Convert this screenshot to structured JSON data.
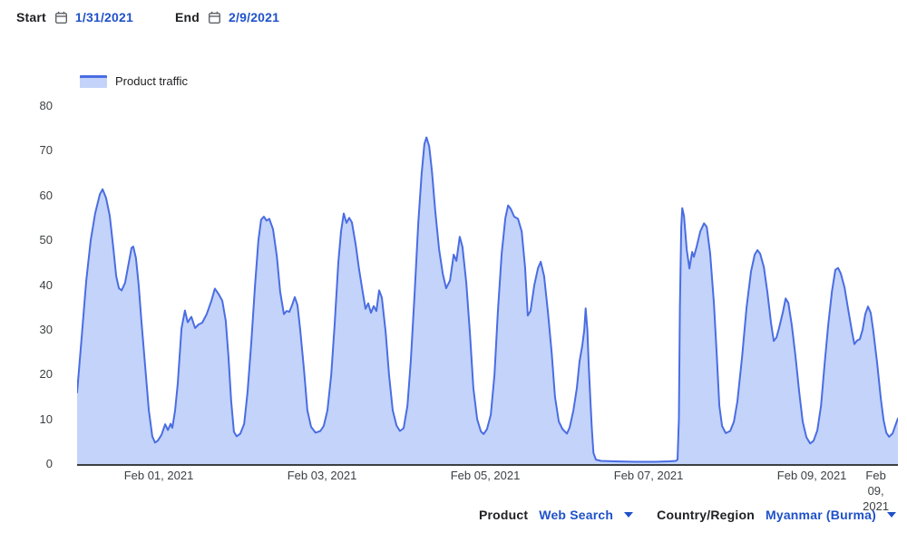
{
  "header": {
    "start_label": "Start",
    "start_date": "1/31/2021",
    "end_label": "End",
    "end_date": "2/9/2021"
  },
  "legend": {
    "label": "Product traffic"
  },
  "footer": {
    "product_label": "Product",
    "product_value": "Web Search",
    "region_label": "Country/Region",
    "region_value": "Myanmar (Burma)"
  },
  "colors": {
    "line": "#4a6de2",
    "fill": "#c3d3f9",
    "link_blue": "#1f51c9",
    "axis": "#3c4043",
    "tick_text": "#3c4043",
    "label_text": "#202124"
  },
  "chart_data": {
    "type": "area",
    "title": "Product traffic",
    "xlabel": "",
    "ylabel": "",
    "x_unit": "hours since Jan 31, 2021 00:00",
    "x_range": [
      0,
      241.3
    ],
    "ylim": [
      0,
      80
    ],
    "grid": false,
    "legend_position": "top-left",
    "yticks": [
      0,
      10,
      20,
      30,
      40,
      50,
      60,
      70,
      80
    ],
    "xticks": [
      {
        "label": "Feb 01, 2021",
        "hour": 24
      },
      {
        "label": "Feb 03, 2021",
        "hour": 72
      },
      {
        "label": "Feb 05, 2021",
        "hour": 120
      },
      {
        "label": "Feb 07, 2021",
        "hour": 168
      },
      {
        "label": "Feb 09, 2021",
        "hour": 216
      },
      {
        "label": "Feb 09,\n2021",
        "hour": 234.8
      }
    ],
    "series": [
      {
        "name": "Product traffic",
        "points": [
          [
            0,
            16
          ],
          [
            1.3,
            28
          ],
          [
            2.7,
            41
          ],
          [
            4,
            50
          ],
          [
            5.3,
            56
          ],
          [
            6.7,
            60.3
          ],
          [
            7.5,
            61.4
          ],
          [
            8.5,
            59.5
          ],
          [
            9.6,
            55.5
          ],
          [
            10.7,
            48
          ],
          [
            11.5,
            42
          ],
          [
            12.3,
            39.3
          ],
          [
            13.1,
            38.8
          ],
          [
            14.1,
            40.5
          ],
          [
            15.2,
            45
          ],
          [
            16,
            48.3
          ],
          [
            16.5,
            48.6
          ],
          [
            17.3,
            46
          ],
          [
            18.1,
            40
          ],
          [
            18.9,
            32
          ],
          [
            20,
            22
          ],
          [
            21.1,
            12
          ],
          [
            22.1,
            6.2
          ],
          [
            22.9,
            4.8
          ],
          [
            23.7,
            5.2
          ],
          [
            24.8,
            6.5
          ],
          [
            25.9,
            8.9
          ],
          [
            26.7,
            7.6
          ],
          [
            27.5,
            9
          ],
          [
            28,
            8.1
          ],
          [
            28.8,
            11.9
          ],
          [
            29.6,
            18
          ],
          [
            30.7,
            30.3
          ],
          [
            31.7,
            34.3
          ],
          [
            32.5,
            31.7
          ],
          [
            33.6,
            32.9
          ],
          [
            34.7,
            30.4
          ],
          [
            35.7,
            31.2
          ],
          [
            36.8,
            31.6
          ],
          [
            38.1,
            33.5
          ],
          [
            39.5,
            36.5
          ],
          [
            40.5,
            39.2
          ],
          [
            41.6,
            38
          ],
          [
            42.7,
            36.5
          ],
          [
            43.7,
            32
          ],
          [
            44.5,
            24
          ],
          [
            45.3,
            14
          ],
          [
            46.1,
            7.2
          ],
          [
            46.9,
            6.2
          ],
          [
            48,
            6.8
          ],
          [
            49.1,
            9
          ],
          [
            50.1,
            16
          ],
          [
            51.2,
            27
          ],
          [
            52.3,
            40
          ],
          [
            53.3,
            50
          ],
          [
            54.1,
            54.6
          ],
          [
            54.9,
            55.3
          ],
          [
            55.7,
            54.4
          ],
          [
            56.5,
            54.8
          ],
          [
            57.6,
            52.5
          ],
          [
            58.7,
            46.5
          ],
          [
            59.7,
            38.5
          ],
          [
            60.8,
            33.5
          ],
          [
            61.6,
            34.2
          ],
          [
            62.4,
            34
          ],
          [
            63.2,
            35.5
          ],
          [
            64,
            37.3
          ],
          [
            64.8,
            35.5
          ],
          [
            65.6,
            30
          ],
          [
            66.7,
            21
          ],
          [
            67.7,
            12
          ],
          [
            68.8,
            8.3
          ],
          [
            70.1,
            7
          ],
          [
            71.5,
            7.4
          ],
          [
            72.5,
            8.5
          ],
          [
            73.6,
            12
          ],
          [
            74.7,
            20
          ],
          [
            75.7,
            31
          ],
          [
            76.8,
            45
          ],
          [
            77.6,
            52
          ],
          [
            78.4,
            56
          ],
          [
            79.2,
            53.9
          ],
          [
            80,
            55
          ],
          [
            80.8,
            54
          ],
          [
            81.9,
            49
          ],
          [
            82.9,
            43.5
          ],
          [
            84,
            38.3
          ],
          [
            84.8,
            34.7
          ],
          [
            85.6,
            35.9
          ],
          [
            86.4,
            33.8
          ],
          [
            87.2,
            35.3
          ],
          [
            88,
            34.2
          ],
          [
            88.8,
            38.8
          ],
          [
            89.6,
            37.2
          ],
          [
            90.7,
            29.5
          ],
          [
            91.7,
            20
          ],
          [
            92.8,
            12
          ],
          [
            93.9,
            8.6
          ],
          [
            94.9,
            7.4
          ],
          [
            96,
            8
          ],
          [
            97.1,
            13
          ],
          [
            98.1,
            23
          ],
          [
            99.2,
            38
          ],
          [
            100.3,
            54
          ],
          [
            101.3,
            65
          ],
          [
            102.1,
            71.5
          ],
          [
            102.7,
            73
          ],
          [
            103.5,
            71
          ],
          [
            104.3,
            65.5
          ],
          [
            105.3,
            56.5
          ],
          [
            106.4,
            48
          ],
          [
            107.5,
            42.5
          ],
          [
            108.5,
            39.3
          ],
          [
            109.6,
            41
          ],
          [
            110.7,
            46.8
          ],
          [
            111.5,
            45.4
          ],
          [
            112.5,
            50.8
          ],
          [
            113.3,
            48.5
          ],
          [
            114.4,
            40.5
          ],
          [
            115.5,
            29
          ],
          [
            116.5,
            17
          ],
          [
            117.6,
            10
          ],
          [
            118.7,
            7.3
          ],
          [
            119.5,
            6.7
          ],
          [
            120.5,
            7.8
          ],
          [
            121.6,
            11
          ],
          [
            122.7,
            20
          ],
          [
            123.7,
            34
          ],
          [
            124.8,
            47
          ],
          [
            125.9,
            55
          ],
          [
            126.7,
            57.8
          ],
          [
            127.5,
            57
          ],
          [
            128.5,
            55.3
          ],
          [
            129.6,
            54.8
          ],
          [
            130.7,
            52
          ],
          [
            131.7,
            44
          ],
          [
            132.5,
            33.2
          ],
          [
            133.3,
            34.2
          ],
          [
            134.4,
            40
          ],
          [
            135.5,
            43.8
          ],
          [
            136.3,
            45.2
          ],
          [
            137.3,
            42
          ],
          [
            138.4,
            34
          ],
          [
            139.5,
            25
          ],
          [
            140.5,
            15
          ],
          [
            141.6,
            9.5
          ],
          [
            142.7,
            7.8
          ],
          [
            144,
            6.8
          ],
          [
            144.8,
            8.2
          ],
          [
            145.9,
            12
          ],
          [
            146.9,
            17
          ],
          [
            147.7,
            23
          ],
          [
            148.5,
            26.5
          ],
          [
            149.1,
            30
          ],
          [
            149.5,
            34.8
          ],
          [
            150,
            30
          ],
          [
            150.4,
            22
          ],
          [
            150.9,
            14
          ],
          [
            151.3,
            8
          ],
          [
            151.8,
            2.5
          ],
          [
            152.5,
            1
          ],
          [
            154,
            0.7
          ],
          [
            158,
            0.6
          ],
          [
            164,
            0.5
          ],
          [
            170,
            0.5
          ],
          [
            174,
            0.6
          ],
          [
            176,
            0.7
          ],
          [
            176.5,
            1
          ],
          [
            176.9,
            10
          ],
          [
            177.2,
            35
          ],
          [
            177.6,
            53
          ],
          [
            177.9,
            57.2
          ],
          [
            178.4,
            55.5
          ],
          [
            179.2,
            48
          ],
          [
            180,
            43.7
          ],
          [
            180.8,
            47.4
          ],
          [
            181.3,
            46.3
          ],
          [
            182.1,
            48.5
          ],
          [
            183.2,
            52
          ],
          [
            184.3,
            53.8
          ],
          [
            185.1,
            53
          ],
          [
            186.1,
            47
          ],
          [
            187.2,
            36
          ],
          [
            188,
            25
          ],
          [
            188.8,
            13
          ],
          [
            189.6,
            8.5
          ],
          [
            190.7,
            6.9
          ],
          [
            192,
            7.4
          ],
          [
            193.1,
            9.5
          ],
          [
            194.1,
            14
          ],
          [
            195.5,
            24
          ],
          [
            196.8,
            35
          ],
          [
            198.1,
            43
          ],
          [
            199.2,
            46.8
          ],
          [
            200,
            47.8
          ],
          [
            200.8,
            47
          ],
          [
            201.9,
            44
          ],
          [
            202.9,
            38.5
          ],
          [
            204,
            31.5
          ],
          [
            204.8,
            27.5
          ],
          [
            205.6,
            28.3
          ],
          [
            206.4,
            30.5
          ],
          [
            207.5,
            34
          ],
          [
            208.3,
            37
          ],
          [
            209.1,
            36
          ],
          [
            210.1,
            31
          ],
          [
            211.2,
            24
          ],
          [
            212.3,
            16
          ],
          [
            213.3,
            9.5
          ],
          [
            214.4,
            6
          ],
          [
            215.5,
            4.6
          ],
          [
            216.5,
            5.2
          ],
          [
            217.6,
            7.5
          ],
          [
            218.7,
            13
          ],
          [
            219.7,
            22
          ],
          [
            220.8,
            31
          ],
          [
            221.9,
            38.5
          ],
          [
            222.9,
            43.4
          ],
          [
            223.7,
            43.8
          ],
          [
            224.5,
            42.6
          ],
          [
            225.6,
            39.5
          ],
          [
            226.7,
            34.5
          ],
          [
            227.7,
            30
          ],
          [
            228.5,
            26.8
          ],
          [
            229.3,
            27.6
          ],
          [
            230.1,
            27.9
          ],
          [
            230.9,
            30
          ],
          [
            231.7,
            33.5
          ],
          [
            232.5,
            35.2
          ],
          [
            233.3,
            33.8
          ],
          [
            234.1,
            29.5
          ],
          [
            235.2,
            22.5
          ],
          [
            236.3,
            14.5
          ],
          [
            237.1,
            9.8
          ],
          [
            237.9,
            7
          ],
          [
            238.7,
            6.1
          ],
          [
            239.7,
            6.8
          ],
          [
            240.5,
            8.5
          ],
          [
            241.3,
            10.2
          ]
        ]
      }
    ]
  }
}
